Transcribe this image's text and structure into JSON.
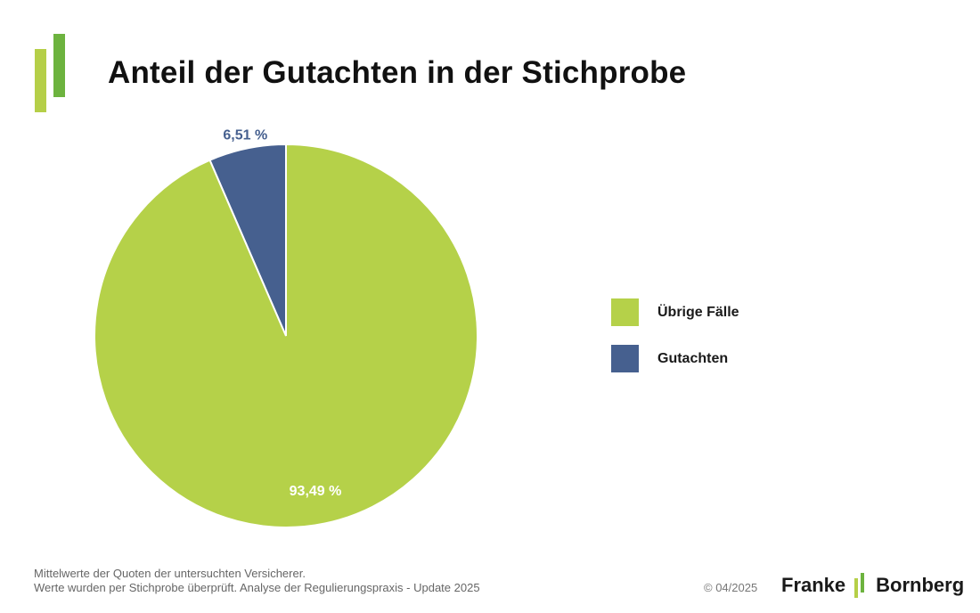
{
  "title": "Anteil der Gutachten in der Stichprobe",
  "chart_data": {
    "type": "pie",
    "title": "Anteil der Gutachten in der Stichprobe",
    "slices": [
      {
        "name": "Gutachten",
        "value": 6.51,
        "label": "6,51 %",
        "color": "#46608f"
      },
      {
        "name": "Übrige Fälle",
        "value": 93.49,
        "label": "93,49 %",
        "color": "#b5d149"
      }
    ],
    "legend": {
      "position": "right",
      "items": [
        {
          "label": "Übrige Fälle",
          "color": "#b5d149"
        },
        {
          "label": "Gutachten",
          "color": "#46608f"
        }
      ]
    }
  },
  "footer": {
    "note_line1": "Mittelwerte der Quoten der untersuchten Versicherer.",
    "note_line2": "Werte wurden per Stichprobe überprüft. Analyse der Regulierungspraxis - Update 2025",
    "copyright": "© 04/2025",
    "brand_left": "Franke",
    "brand_right": "Bornberg"
  },
  "colors": {
    "logo_green_light": "#b5cf48",
    "logo_green_dark": "#6db33f"
  }
}
